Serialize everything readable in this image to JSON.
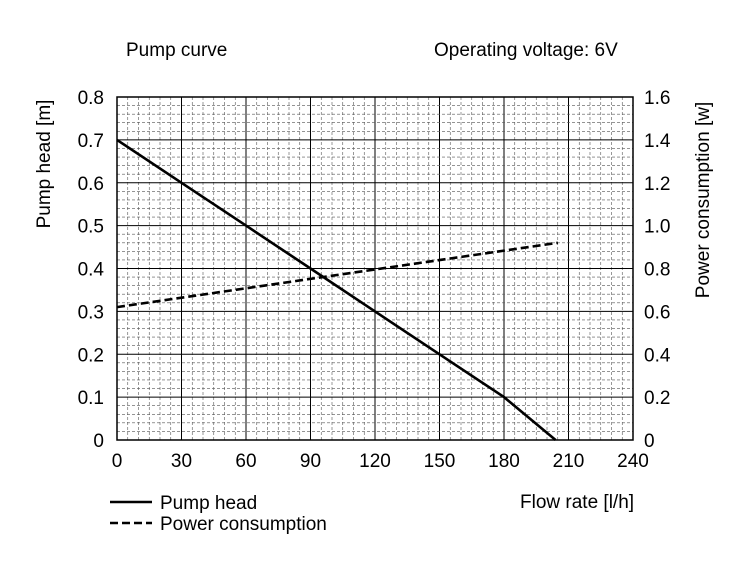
{
  "chart_data": {
    "type": "line",
    "title": "Pump curve",
    "subtitle": "Operating voltage: 6V",
    "xlabel": "Flow rate [l/h]",
    "ylabel": "Pump head [m]",
    "y2label": "Power consumption [w]",
    "xlim": [
      0,
      240
    ],
    "ylim": [
      0,
      0.8
    ],
    "y2lim": [
      0,
      1.6
    ],
    "x_ticks": [
      "0",
      "30",
      "60",
      "90",
      "120",
      "150",
      "180",
      "210",
      "240"
    ],
    "y_ticks": [
      "0",
      "0.1",
      "0.2",
      "0.3",
      "0.4",
      "0.5",
      "0.6",
      "0.7",
      "0.8"
    ],
    "y2_ticks": [
      "0",
      "0.2",
      "0.4",
      "0.6",
      "0.8",
      "1.0",
      "1.2",
      "1.4",
      "1.6"
    ],
    "grid": true,
    "legend_position": "bottom-left",
    "series": [
      {
        "name": "Pump head",
        "axis": "left",
        "style": "solid",
        "x": [
          0,
          30,
          60,
          90,
          120,
          150,
          180,
          204
        ],
        "y": [
          0.7,
          0.6,
          0.5,
          0.4,
          0.3,
          0.2,
          0.1,
          0.0
        ]
      },
      {
        "name": "Power consumption",
        "axis": "right",
        "style": "dashed",
        "x": [
          0,
          205
        ],
        "y": [
          0.62,
          0.92
        ]
      }
    ]
  }
}
